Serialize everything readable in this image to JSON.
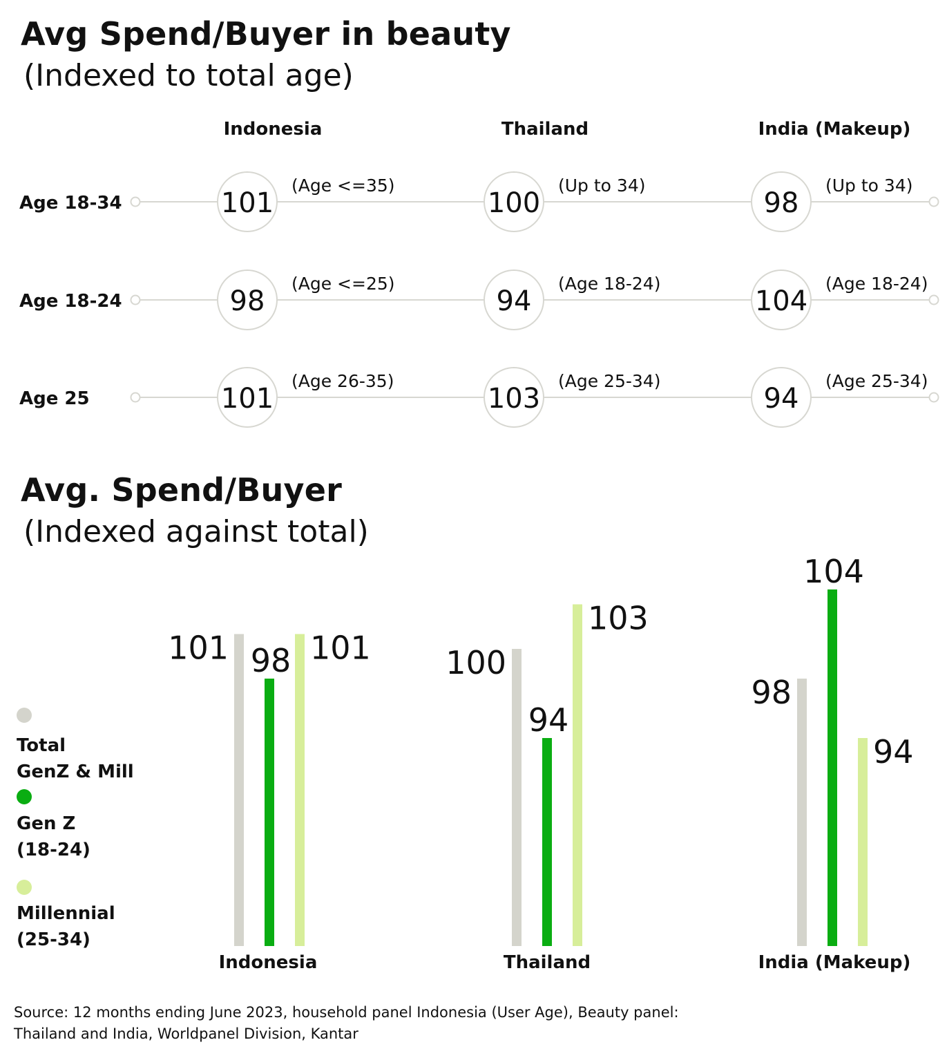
{
  "top_chart": {
    "title": "Avg Spend/Buyer in beauty",
    "subtitle": "(Indexed to total age)",
    "columns": [
      "Indonesia",
      "Thailand",
      "India (Makeup)"
    ],
    "rows": [
      {
        "label": "Age 18-34",
        "cells": [
          {
            "value": 101,
            "note": "(Age <=35)"
          },
          {
            "value": 100,
            "note": "(Up to 34)"
          },
          {
            "value": 98,
            "note": "(Up to 34)"
          }
        ]
      },
      {
        "label": "Age 18-24",
        "cells": [
          {
            "value": 98,
            "note": "(Age <=25)"
          },
          {
            "value": 94,
            "note": "(Age 18-24)"
          },
          {
            "value": 104,
            "note": "(Age 18-24)"
          }
        ]
      },
      {
        "label": "Age 25",
        "cells": [
          {
            "value": 101,
            "note": "(Age 26-35)"
          },
          {
            "value": 103,
            "note": "(Age 25-34)"
          },
          {
            "value": 94,
            "note": "(Age 25-34)"
          }
        ]
      }
    ],
    "colors": {
      "line": "#d7d7d1",
      "circle": "#d7d7d1"
    }
  },
  "chart_data": {
    "type": "bar",
    "title": "Avg. Spend/Buyer",
    "subtitle": "(Indexed against total)",
    "categories": [
      "Indonesia",
      "Thailand",
      "India (Makeup)"
    ],
    "series": [
      {
        "name": "Total GenZ & Mill",
        "legend_lines": [
          "Total",
          "GenZ & Mill"
        ],
        "color": "#d4d4cc",
        "values": [
          101,
          100,
          98
        ]
      },
      {
        "name": "Gen Z (18-24)",
        "legend_lines": [
          "Gen Z",
          "(18-24)"
        ],
        "color": "#0aad12",
        "values": [
          98,
          94,
          104
        ]
      },
      {
        "name": "Millennial (25-34)",
        "legend_lines": [
          "Millennial",
          "(25-34)"
        ],
        "color": "#d7ee9a",
        "values": [
          101,
          103,
          94
        ]
      }
    ],
    "legend_position": "left",
    "grid": false
  },
  "source": {
    "line1": "Source: 12 months ending June 2023, household panel Indonesia (User Age), Beauty panel:",
    "line2": "Thailand and India, Worldpanel Division, Kantar"
  }
}
